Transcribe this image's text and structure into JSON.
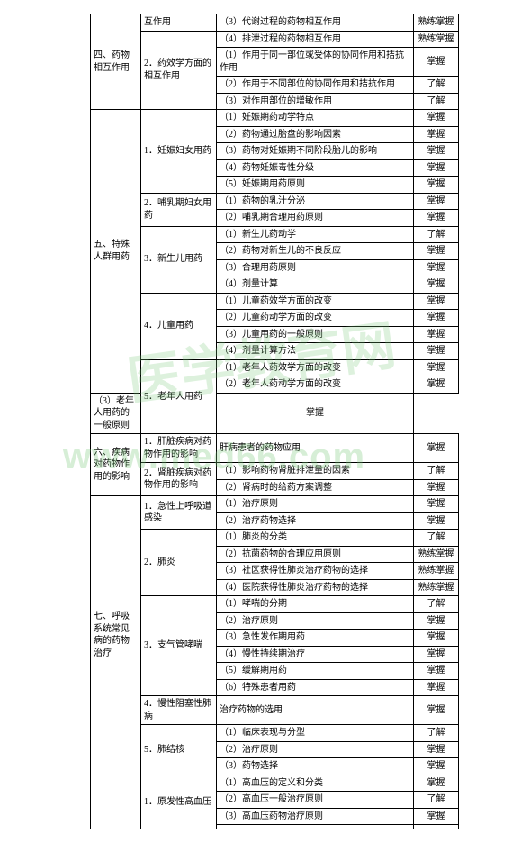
{
  "watermark1": "医学教育网",
  "watermark2": "www.med66.com",
  "rows": [
    {
      "c1": "",
      "c2": "互作用",
      "c3": "（3）代谢过程的药物相互作用",
      "c4": "熟练掌握",
      "c1rs": 4,
      "c2rs": 1
    },
    {
      "c3": "（4）排泄过程的药物相互作用",
      "c4": "熟练掌握",
      "newC2": "2．药效学方面的相互作用",
      "c2rs": 3
    },
    {
      "c1label": "四、药物相互作用",
      "span": true
    },
    {
      "c3": "（1）作用于同一部位或受体的协同作用和拮抗作用",
      "c4": "掌握"
    },
    {
      "c3": "（2）作用于不同部位的协同作用和拮抗作用",
      "c4": "了解"
    },
    {
      "c3": "（3）对作用部位的增敏作用",
      "c4": "了解"
    }
  ]
}
